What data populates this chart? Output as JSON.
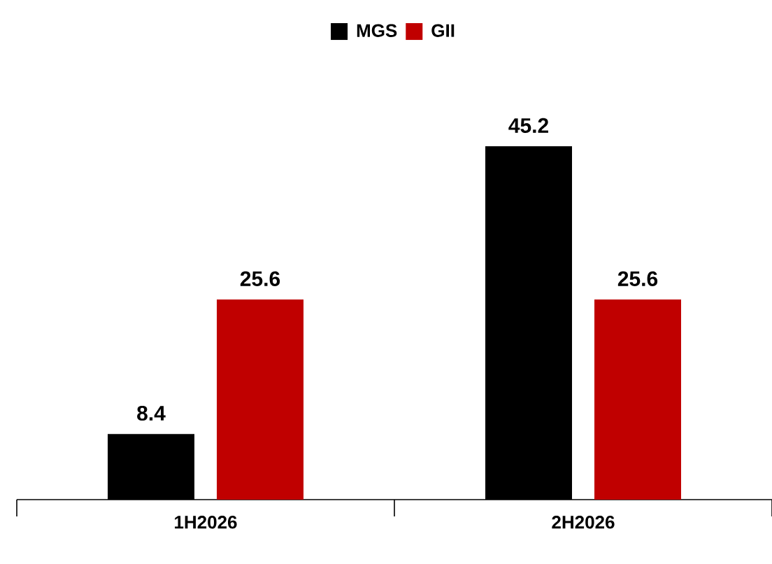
{
  "chart_data": {
    "type": "bar",
    "categories": [
      "1H2026",
      "2H2026"
    ],
    "series": [
      {
        "name": "MGS",
        "color": "#000000",
        "values": [
          8.4,
          45.2
        ]
      },
      {
        "name": "GII",
        "color": "#c00000",
        "values": [
          25.6,
          25.6
        ]
      }
    ],
    "data_labels": true,
    "legend": "top"
  }
}
